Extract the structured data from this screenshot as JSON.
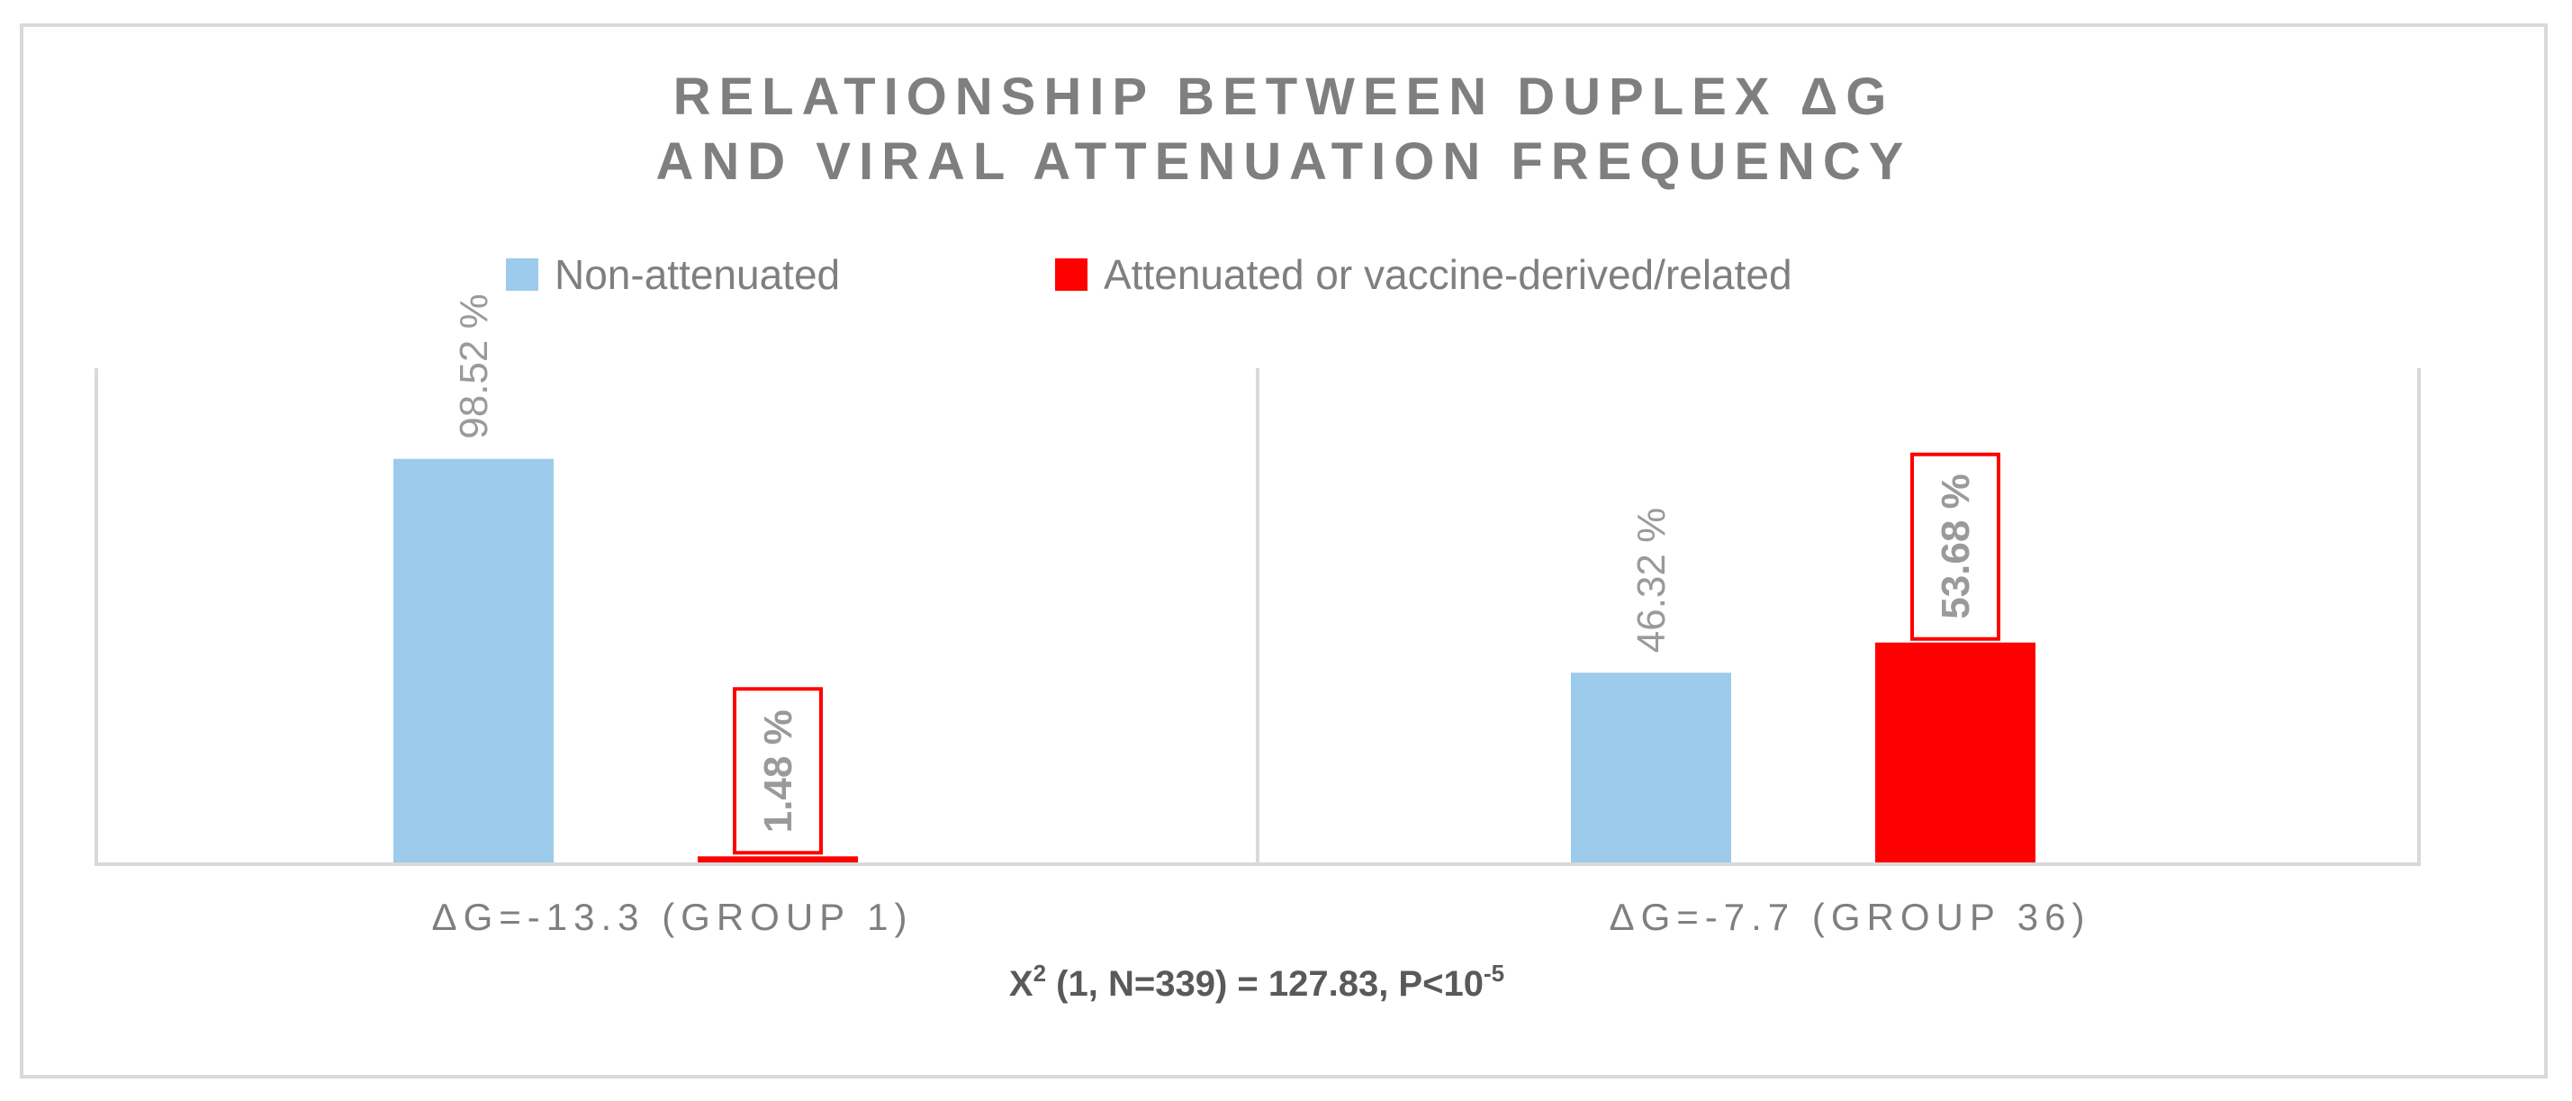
{
  "chart_data": {
    "type": "bar",
    "title": [
      "RELATIONSHIP BETWEEN DUPLEX ΔG",
      "AND VIRAL ATTENUATION FREQUENCY"
    ],
    "categories": [
      "ΔG=-13.3 (GROUP 1)",
      "ΔG=-7.7 (GROUP 36)"
    ],
    "series": [
      {
        "name": "Non-attenuated",
        "color": "#9ccbeb",
        "values": [
          98.52,
          46.32
        ],
        "labels": [
          "98.52 %",
          "46.32 %"
        ],
        "label_boxed": false
      },
      {
        "name": "Attenuated or vaccine-derived/related",
        "color": "#ff0000",
        "values": [
          1.48,
          53.68
        ],
        "labels": [
          "1.48 %",
          "53.68 %"
        ],
        "label_boxed": true
      }
    ],
    "ylim": [
      0,
      100
    ],
    "grid": false,
    "legend_position": "top",
    "annotation": {
      "main": "X",
      "sup1": "2",
      "mid": " (1, N=339) = 127.83, P<10",
      "sup2": "-5"
    }
  }
}
